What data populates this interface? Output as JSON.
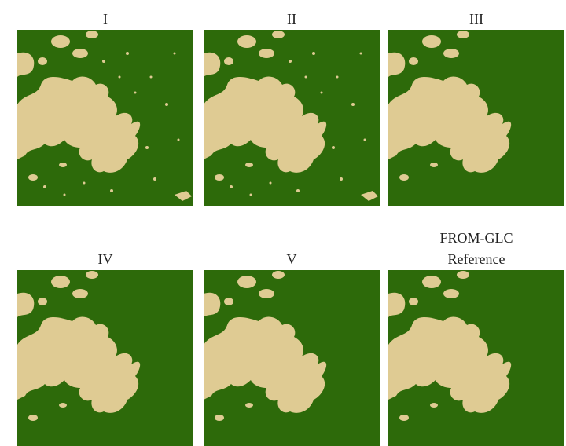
{
  "panels": [
    {
      "title_lines": [
        "I"
      ]
    },
    {
      "title_lines": [
        "II"
      ]
    },
    {
      "title_lines": [
        "III"
      ]
    },
    {
      "title_lines": [
        "IV"
      ]
    },
    {
      "title_lines": [
        "V"
      ]
    },
    {
      "title_lines": [
        "FROM-GLC",
        "Reference"
      ]
    }
  ]
}
